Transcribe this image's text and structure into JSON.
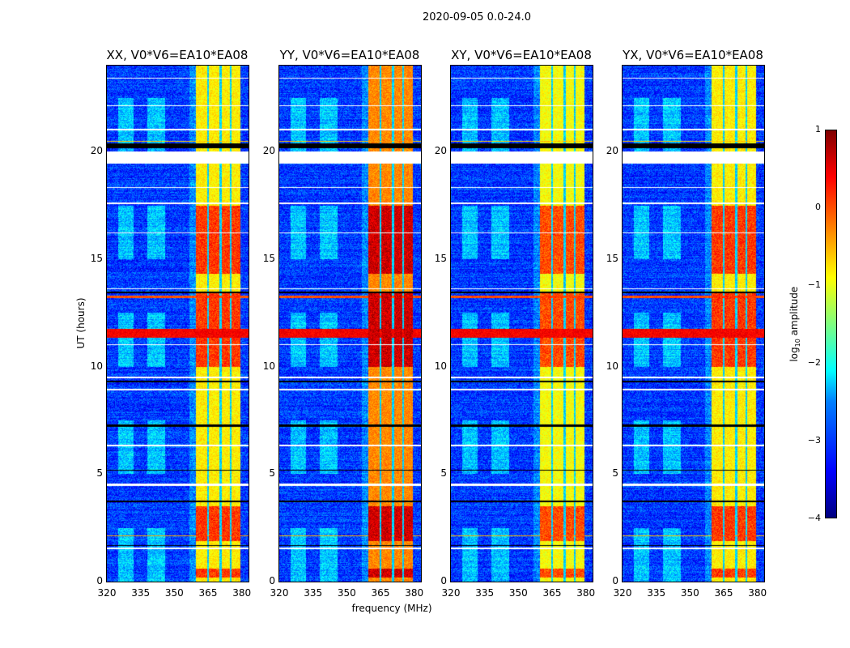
{
  "suptitle": "2020-09-05 0.0-24.0",
  "chart_data": {
    "type": "heatmap",
    "title": "2020-09-05 0.0-24.0",
    "xlabel": "frequency (MHz)",
    "ylabel": "UT (hours)",
    "xlim": [
      320,
      383
    ],
    "ylim": [
      0,
      24
    ],
    "xticks": [
      "320",
      "335",
      "350",
      "365",
      "380"
    ],
    "xtick_values": [
      320,
      335,
      350,
      365,
      380
    ],
    "yticks": [
      "0",
      "5",
      "10",
      "15",
      "20"
    ],
    "ytick_values": [
      0,
      5,
      10,
      15,
      20
    ],
    "colormap": "jet",
    "colorbar": {
      "label_main": "log",
      "label_sub": "10",
      "label_rest": " amplitude",
      "range": [
        -4,
        1
      ],
      "ticks": [
        "1",
        "0",
        "−1",
        "−2",
        "−3",
        "−4"
      ],
      "tick_values": [
        1,
        0,
        -1,
        -2,
        -3,
        -4
      ]
    },
    "panels": [
      {
        "title": "XX, V0*V6=EA10*EA08",
        "band_level": -0.8
      },
      {
        "title": "YY, V0*V6=EA10*EA08",
        "band_level": -0.3
      },
      {
        "title": "XY, V0*V6=EA10*EA08",
        "band_level": -0.9
      },
      {
        "title": "YX, V0*V6=EA10*EA08",
        "band_level": -0.8
      }
    ],
    "background_level": -3.1,
    "strong_band_mhz": [
      359.6,
      379.5
    ],
    "band_gaps_mhz": [
      365,
      370.5,
      375
    ],
    "strong_blocks_hours": [
      [
        1.9,
        3.5
      ],
      [
        10.0,
        13.5
      ],
      [
        14.3,
        17.5
      ],
      [
        0.2,
        0.6
      ]
    ],
    "flagged_hours_white": [
      [
        19.45,
        20.0
      ],
      [
        1.5,
        1.6
      ],
      [
        4.45,
        4.55
      ],
      [
        9.45,
        9.55
      ],
      [
        17.55,
        17.65
      ],
      [
        13.6,
        13.65
      ],
      [
        8.9,
        8.95
      ],
      [
        22.1,
        22.15
      ],
      [
        23.4,
        23.45
      ],
      [
        21.0,
        21.05
      ],
      [
        18.3,
        18.35
      ],
      [
        16.2,
        16.25
      ],
      [
        6.3,
        6.35
      ],
      [
        11.0,
        11.05
      ]
    ],
    "flagged_hours_black": [
      [
        20.15,
        20.4
      ],
      [
        9.25,
        9.35
      ],
      [
        1.65,
        1.7
      ],
      [
        7.2,
        7.3
      ],
      [
        13.4,
        13.5
      ],
      [
        5.15,
        5.2
      ],
      [
        3.7,
        3.75
      ]
    ],
    "rfi_lines_hours": [
      [
        11.35,
        11.75,
        0.4
      ],
      [
        13.2,
        13.3,
        0.0
      ],
      [
        20.45,
        20.5,
        -0.6
      ],
      [
        2.1,
        2.15,
        -0.5
      ]
    ],
    "diffuse_emission_mhz": [
      [
        325,
        332
      ],
      [
        338,
        346
      ]
    ]
  }
}
